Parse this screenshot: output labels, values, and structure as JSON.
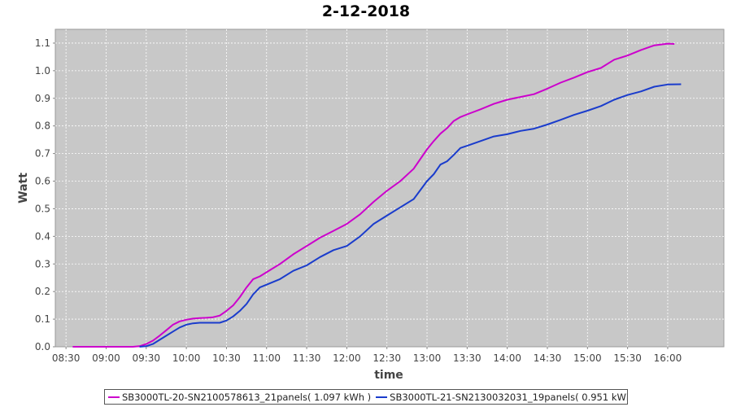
{
  "chart_data": {
    "type": "line",
    "title": "2-12-2018",
    "xlabel": "time",
    "ylabel": "Watt",
    "x_ticks": [
      "08:30",
      "09:00",
      "09:30",
      "10:00",
      "10:30",
      "11:00",
      "11:30",
      "12:00",
      "12:30",
      "13:00",
      "13:30",
      "14:00",
      "14:30",
      "15:00",
      "15:30",
      "16:00"
    ],
    "y_ticks": [
      "0.0",
      "0.1",
      "0.2",
      "0.3",
      "0.4",
      "0.5",
      "0.6",
      "0.7",
      "0.8",
      "0.9",
      "1.0",
      "1.1"
    ],
    "xlim": [
      "08:22",
      "16:42"
    ],
    "ylim": [
      0,
      1.15
    ],
    "grid": true,
    "legend_position": "bottom",
    "series": [
      {
        "name": "SB3000TL-20-SN2100578613_21panels( 1.097 kWh )",
        "color": "#cc00cc",
        "x": [
          "08:35",
          "09:00",
          "09:20",
          "09:25",
          "09:30",
          "09:35",
          "09:40",
          "09:45",
          "09:50",
          "09:55",
          "10:00",
          "10:05",
          "10:10",
          "10:15",
          "10:20",
          "10:25",
          "10:30",
          "10:35",
          "10:40",
          "10:45",
          "10:50",
          "10:55",
          "11:00",
          "11:10",
          "11:20",
          "11:30",
          "11:40",
          "11:50",
          "12:00",
          "12:10",
          "12:20",
          "12:30",
          "12:40",
          "12:50",
          "13:00",
          "13:05",
          "13:10",
          "13:15",
          "13:20",
          "13:25",
          "13:30",
          "13:40",
          "13:50",
          "14:00",
          "14:10",
          "14:20",
          "14:30",
          "14:40",
          "14:50",
          "15:00",
          "15:10",
          "15:20",
          "15:30",
          "15:40",
          "15:50",
          "16:00",
          "16:05"
        ],
        "y": [
          0.0,
          0.0,
          0.0,
          0.002,
          0.01,
          0.022,
          0.04,
          0.06,
          0.08,
          0.092,
          0.098,
          0.102,
          0.104,
          0.105,
          0.107,
          0.113,
          0.13,
          0.15,
          0.18,
          0.215,
          0.245,
          0.255,
          0.27,
          0.3,
          0.335,
          0.365,
          0.395,
          0.42,
          0.445,
          0.48,
          0.525,
          0.565,
          0.6,
          0.645,
          0.715,
          0.745,
          0.772,
          0.792,
          0.818,
          0.832,
          0.842,
          0.86,
          0.88,
          0.895,
          0.905,
          0.915,
          0.935,
          0.957,
          0.975,
          0.995,
          1.01,
          1.04,
          1.055,
          1.075,
          1.092,
          1.098,
          1.097
        ]
      },
      {
        "name": "SB3000TL-21-SN2130032031_19panels( 0.951 kWh )",
        "color": "#1a3ccc",
        "x": [
          "09:25",
          "09:30",
          "09:35",
          "09:40",
          "09:45",
          "09:50",
          "09:55",
          "10:00",
          "10:05",
          "10:10",
          "10:15",
          "10:20",
          "10:25",
          "10:30",
          "10:35",
          "10:40",
          "10:45",
          "10:50",
          "10:55",
          "11:00",
          "11:10",
          "11:20",
          "11:30",
          "11:40",
          "11:50",
          "12:00",
          "12:10",
          "12:20",
          "12:30",
          "12:40",
          "12:50",
          "13:00",
          "13:05",
          "13:10",
          "13:15",
          "13:20",
          "13:25",
          "13:30",
          "13:40",
          "13:50",
          "14:00",
          "14:10",
          "14:20",
          "14:30",
          "14:40",
          "14:50",
          "15:00",
          "15:10",
          "15:20",
          "15:30",
          "15:40",
          "15:50",
          "16:00",
          "16:10"
        ],
        "y": [
          0.0,
          0.002,
          0.01,
          0.025,
          0.04,
          0.055,
          0.07,
          0.08,
          0.085,
          0.087,
          0.087,
          0.087,
          0.087,
          0.095,
          0.11,
          0.13,
          0.155,
          0.19,
          0.215,
          0.225,
          0.245,
          0.275,
          0.295,
          0.325,
          0.35,
          0.365,
          0.4,
          0.445,
          0.475,
          0.505,
          0.535,
          0.6,
          0.625,
          0.66,
          0.672,
          0.695,
          0.72,
          0.728,
          0.745,
          0.762,
          0.77,
          0.782,
          0.79,
          0.805,
          0.822,
          0.84,
          0.855,
          0.872,
          0.895,
          0.912,
          0.925,
          0.942,
          0.95,
          0.951
        ]
      }
    ]
  }
}
